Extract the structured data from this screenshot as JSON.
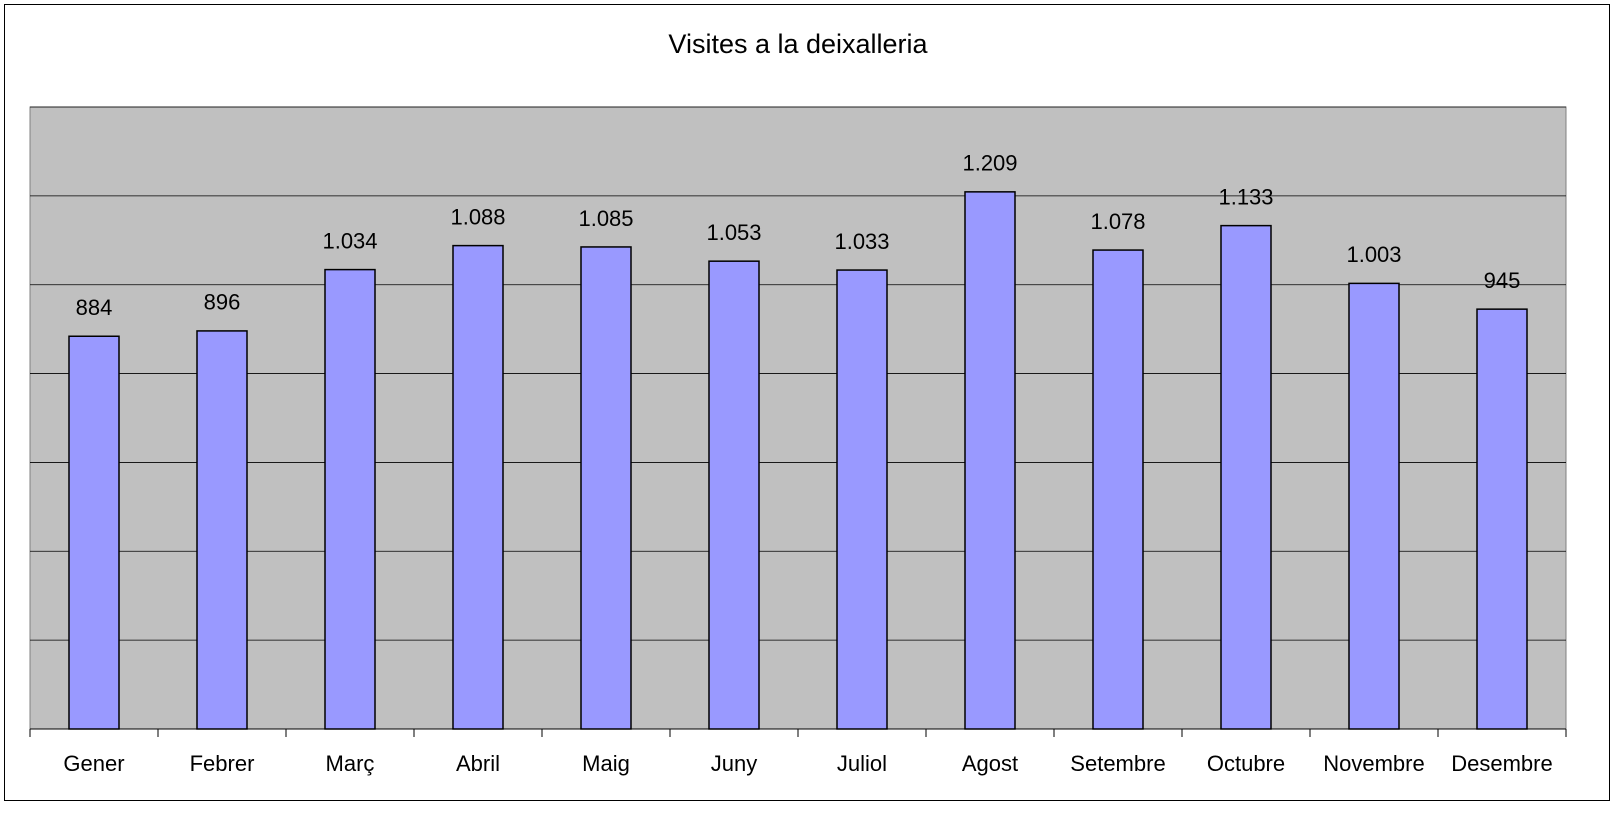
{
  "chart_data": {
    "type": "bar",
    "title": "Visites a la deixalleria",
    "categories": [
      "Gener",
      "Febrer",
      "Març",
      "Abril",
      "Maig",
      "Juny",
      "Juliol",
      "Agost",
      "Setembre",
      "Octubre",
      "Novembre",
      "Desembre"
    ],
    "values": [
      884,
      896,
      1034,
      1088,
      1085,
      1053,
      1033,
      1209,
      1078,
      1133,
      1003,
      945
    ],
    "value_labels": [
      "884",
      "896",
      "1.034",
      "1.088",
      "1.085",
      "1.053",
      "1.033",
      "1.209",
      "1.078",
      "1.133",
      "1.003",
      "945"
    ],
    "color": "#9999ff",
    "ylim": [
      0,
      1400
    ],
    "yticks": [
      0,
      200,
      400,
      600,
      800,
      1000,
      1200,
      1400
    ],
    "grid": true
  }
}
